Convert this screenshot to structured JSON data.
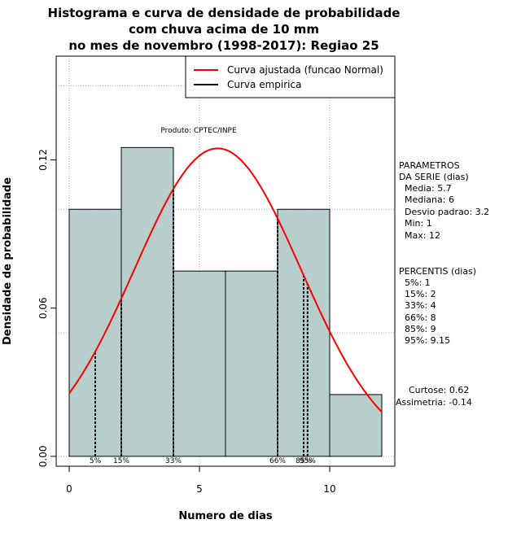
{
  "chart_data": {
    "type": "bar",
    "title_lines": [
      "Histograma e curva de densidade de probabilidade",
      "com chuva acima de 10 mm",
      "no mes de novembro (1998-2017): Regiao 25"
    ],
    "xlabel": "Numero de dias",
    "ylabel": "Densidade de probabilidade",
    "xlim": [
      -0.5,
      12.5
    ],
    "ylim": [
      -0.004,
      0.162
    ],
    "x_ticks": [
      0,
      5,
      10
    ],
    "x_tick_labels": [
      "0",
      "5",
      "10"
    ],
    "y_ticks": [
      0.0,
      0.06,
      0.12
    ],
    "y_tick_labels": [
      "0.00",
      "0.06",
      "0.12"
    ],
    "grid_x": [
      0,
      5,
      10
    ],
    "grid_y": [
      0.0,
      0.05,
      0.1,
      0.15
    ],
    "grid": true,
    "bins": [
      {
        "x0": 0,
        "x1": 2,
        "value": 0.1
      },
      {
        "x0": 2,
        "x1": 4,
        "value": 0.125
      },
      {
        "x0": 4,
        "x1": 6,
        "value": 0.075
      },
      {
        "x0": 6,
        "x1": 8,
        "value": 0.075
      },
      {
        "x0": 8,
        "x1": 10,
        "value": 0.1
      },
      {
        "x0": 10,
        "x1": 12,
        "value": 0.025
      }
    ],
    "bar_color": "#b7cecd",
    "fitted_curve": {
      "distribution": "normal",
      "mean": 5.7,
      "sd": 3.2,
      "color": "#ff0000",
      "x_range": [
        0,
        12
      ]
    },
    "percentile_lines": [
      {
        "label": "5%",
        "x": 1
      },
      {
        "label": "15%",
        "x": 2
      },
      {
        "label": "33%",
        "x": 4
      },
      {
        "label": "66%",
        "x": 8
      },
      {
        "label": "85%",
        "x": 9
      },
      {
        "label": "95%",
        "x": 9.15
      }
    ],
    "legend": {
      "position": "top-right",
      "entries": [
        {
          "label": "Curva ajustada (funcao Normal)",
          "color": "#ff0000"
        },
        {
          "label": "Curva empirica",
          "color": "#000000"
        }
      ]
    },
    "annotation": "Produto: CPTEC/INPE"
  },
  "stats": {
    "params_header": [
      "PARAMETROS",
      "DA SERIE (dias)"
    ],
    "params": [
      "Media: 5.7",
      "Mediana: 6",
      "Desvio padrao: 3.2",
      "Min: 1",
      "Max: 12"
    ],
    "percentis_header": "PERCENTIS (dias)",
    "percentis": [
      "5%: 1",
      "15%: 2",
      "33%: 4",
      "66%: 8",
      "85%: 9",
      "95%: 9.15"
    ],
    "curtose": "Curtose: 0.62",
    "assimetria": "Assimetria: -0.14"
  }
}
